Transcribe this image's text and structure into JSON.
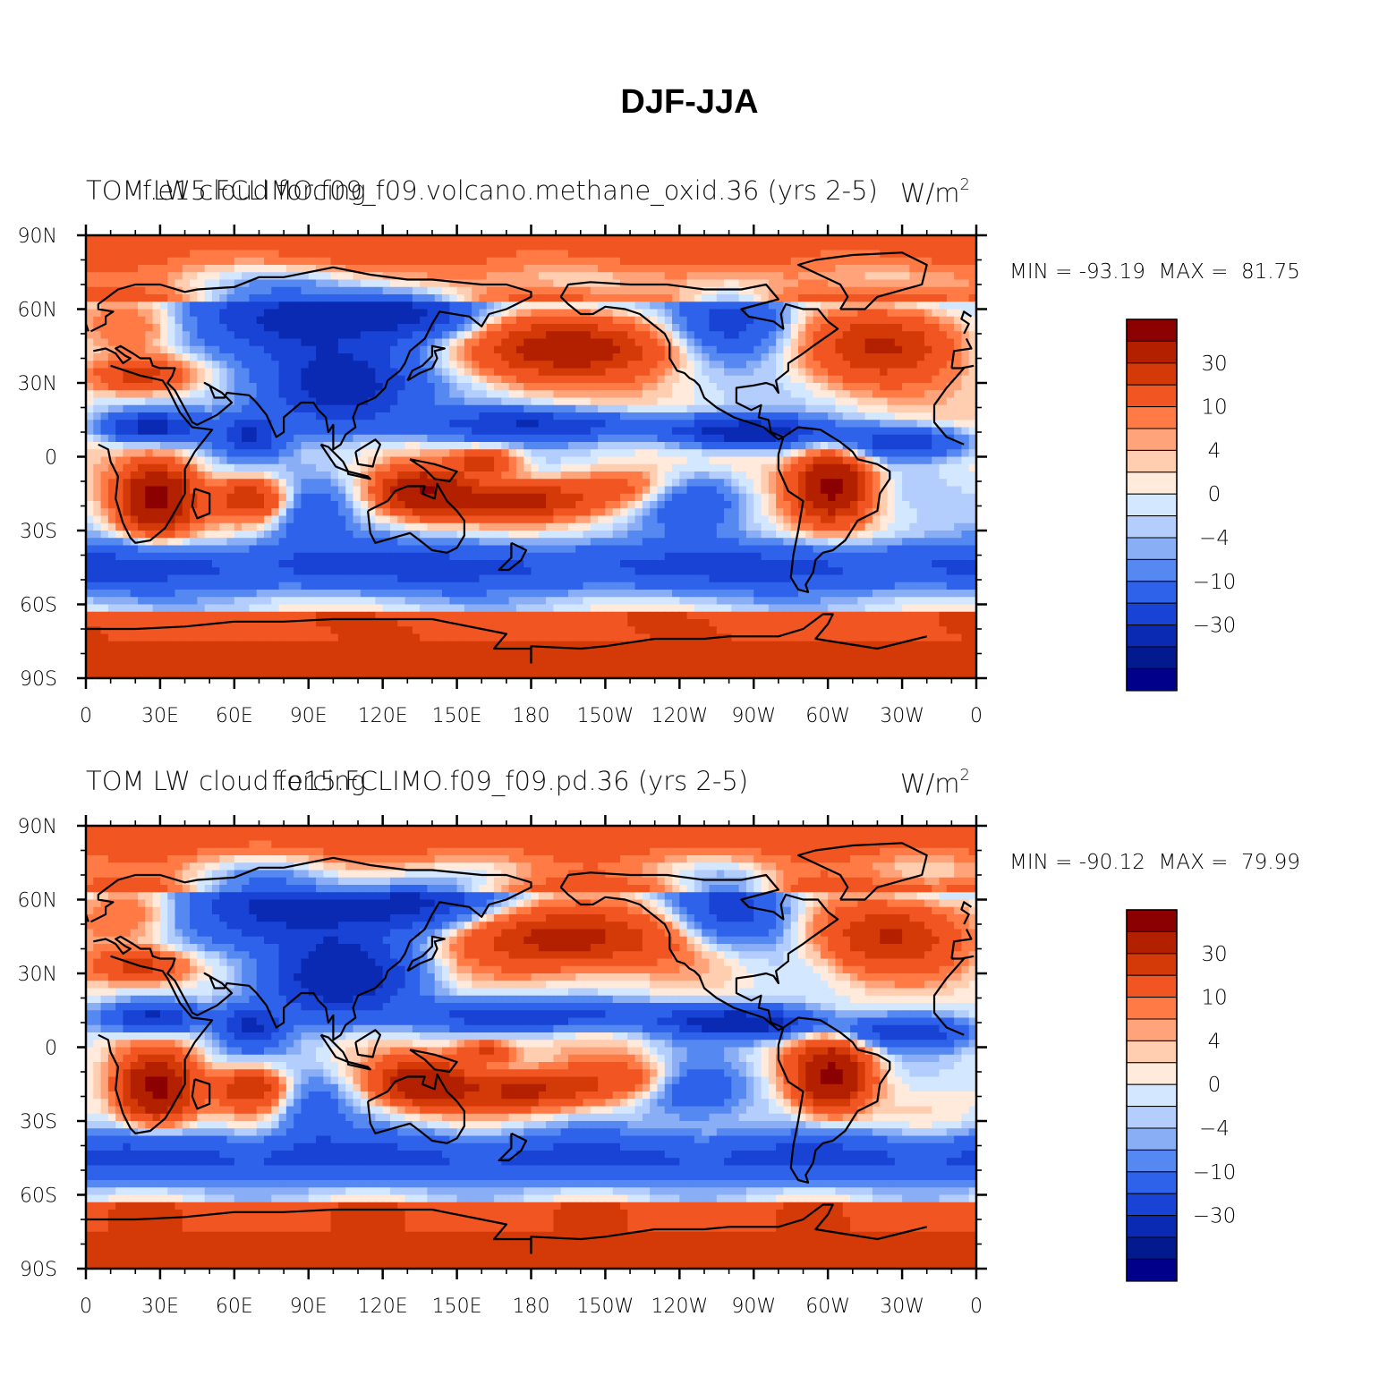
{
  "title": "DJF-JJA",
  "panels": [
    {
      "left_label": "TOM LW cloud forcing",
      "center_label": "f.e15.FCLIMO.f09_f09.volcano.methane_oxid.36 (yrs 2-5)",
      "units": "W/m",
      "units_sup": "2",
      "minmax": "MIN = -93.19  MAX =  81.75",
      "min": -93.19,
      "max": 81.75
    },
    {
      "left_label": "TOM LW cloud forcing",
      "center_label": "f.e15.FCLIMO.f09_f09.pd.36 (yrs 2-5)",
      "units": "W/m",
      "units_sup": "2",
      "minmax": "MIN = -90.12  MAX =  79.99",
      "min": -90.12,
      "max": 79.99
    }
  ],
  "axes": {
    "lat_ticks": [
      "90N",
      "60N",
      "30N",
      "0",
      "30S",
      "60S",
      "90S"
    ],
    "lon_ticks": [
      "0",
      "30E",
      "60E",
      "90E",
      "120E",
      "150E",
      "180",
      "150W",
      "120W",
      "90W",
      "60W",
      "30W",
      "0"
    ]
  },
  "colorbar": {
    "labels": [
      "30",
      "10",
      "4",
      "0",
      "-4",
      "-10",
      "-30"
    ],
    "colors": [
      "#8b0000",
      "#b22000",
      "#d43a08",
      "#f05522",
      "#ff7a45",
      "#ffa47a",
      "#ffcdb0",
      "#ffeadc",
      "#d3e7ff",
      "#b3cdfc",
      "#89aef5",
      "#5588f0",
      "#2e62ea",
      "#1843d4",
      "#0b2ab4",
      "#031a8f",
      "#00008b"
    ]
  },
  "chart_data": {
    "type": "heatmap",
    "title": "DJF-JJA",
    "x_ticks": [
      "0",
      "30E",
      "60E",
      "90E",
      "120E",
      "150E",
      "180",
      "150W",
      "120W",
      "90W",
      "60W",
      "30W",
      "0"
    ],
    "y_ticks": [
      "90N",
      "60N",
      "30N",
      "0",
      "30S",
      "60S",
      "90S"
    ],
    "xlim": [
      0,
      360
    ],
    "ylim": [
      -90,
      90
    ],
    "colorbar_labels": [
      "30",
      "10",
      "4",
      "0",
      "-4",
      "-10",
      "-30"
    ],
    "series": [
      {
        "name": "f.e15.FCLIMO.f09_f09.volcano.methane_oxid.36 (yrs 2-5)",
        "min": -93.19,
        "max": 81.75
      },
      {
        "name": "f.e15.FCLIMO.f09_f09.pd.36 (yrs 2-5)",
        "min": -90.12,
        "max": 79.99
      }
    ]
  }
}
